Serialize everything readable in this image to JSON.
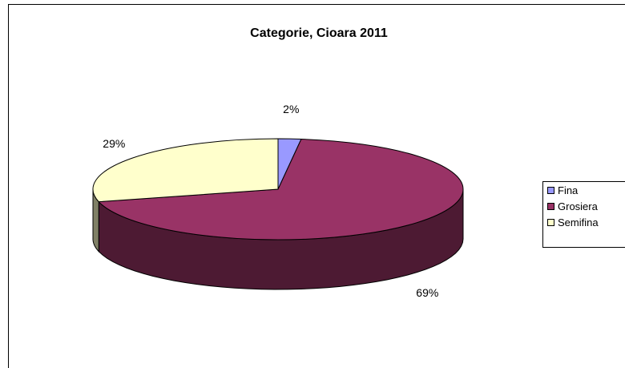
{
  "chart_data": {
    "type": "pie",
    "title": "Categorie, Cioara 2011",
    "categories": [
      "Fina",
      "Grosiera",
      "Semifina"
    ],
    "values": [
      2,
      69,
      29
    ],
    "data_labels": [
      "2%",
      "69%",
      "29%"
    ],
    "colors": [
      "#9999FF",
      "#993366",
      "#FFFFCC"
    ],
    "side_colors": [
      "#4D4D80",
      "#4D1A33",
      "#808066"
    ],
    "legend_position": "right",
    "three_d": true
  }
}
